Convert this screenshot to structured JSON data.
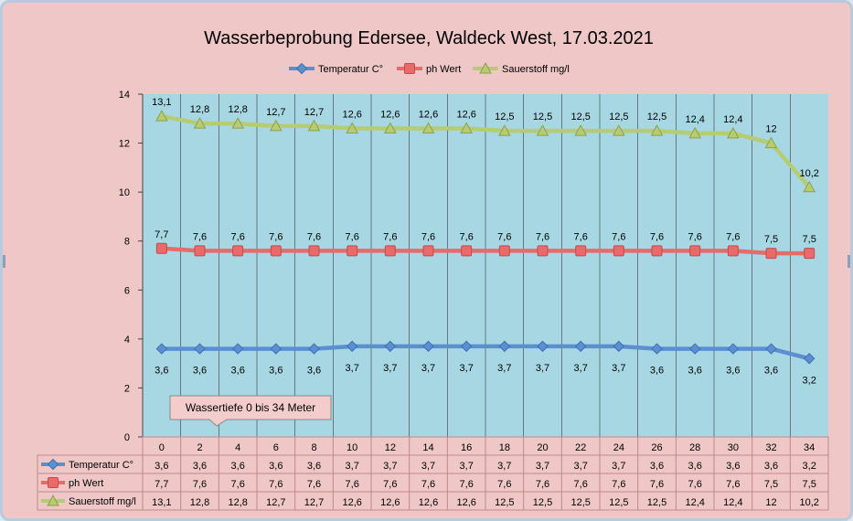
{
  "chart_data": {
    "type": "line",
    "title": "Wasserbeprobung Edersee, Waldeck West, 17.03.2021",
    "categories": [
      "0",
      "2",
      "4",
      "6",
      "8",
      "10",
      "12",
      "14",
      "16",
      "18",
      "20",
      "22",
      "24",
      "26",
      "28",
      "30",
      "32",
      "34"
    ],
    "ylim": [
      0,
      14
    ],
    "yticks": [
      "0",
      "2",
      "4",
      "6",
      "8",
      "10",
      "12",
      "14"
    ],
    "grid": "vertical",
    "legend": "top",
    "series": [
      {
        "name": "Temperatur C°",
        "color": "#5b8fd2",
        "marker": "diamond",
        "values": [
          3.6,
          3.6,
          3.6,
          3.6,
          3.6,
          3.7,
          3.7,
          3.7,
          3.7,
          3.7,
          3.7,
          3.7,
          3.7,
          3.6,
          3.6,
          3.6,
          3.6,
          3.2
        ],
        "labels": [
          "3,6",
          "3,6",
          "3,6",
          "3,6",
          "3,6",
          "3,7",
          "3,7",
          "3,7",
          "3,7",
          "3,7",
          "3,7",
          "3,7",
          "3,7",
          "3,6",
          "3,6",
          "3,6",
          "3,6",
          "3,2"
        ]
      },
      {
        "name": "ph Wert",
        "color": "#e86a6a",
        "marker": "square",
        "values": [
          7.7,
          7.6,
          7.6,
          7.6,
          7.6,
          7.6,
          7.6,
          7.6,
          7.6,
          7.6,
          7.6,
          7.6,
          7.6,
          7.6,
          7.6,
          7.6,
          7.5,
          7.5
        ],
        "labels": [
          "7,7",
          "7,6",
          "7,6",
          "7,6",
          "7,6",
          "7,6",
          "7,6",
          "7,6",
          "7,6",
          "7,6",
          "7,6",
          "7,6",
          "7,6",
          "7,6",
          "7,6",
          "7,6",
          "7,5",
          "7,5"
        ]
      },
      {
        "name": "Sauerstoff mg/l",
        "color": "#b5cc72",
        "marker": "triangle",
        "values": [
          13.1,
          12.8,
          12.8,
          12.7,
          12.7,
          12.6,
          12.6,
          12.6,
          12.6,
          12.5,
          12.5,
          12.5,
          12.5,
          12.5,
          12.4,
          12.4,
          12,
          10.2
        ],
        "labels": [
          "13,1",
          "12,8",
          "12,8",
          "12,7",
          "12,7",
          "12,6",
          "12,6",
          "12,6",
          "12,6",
          "12,5",
          "12,5",
          "12,5",
          "12,5",
          "12,5",
          "12,4",
          "12,4",
          "12",
          "10,2"
        ]
      }
    ],
    "annotation": "Wassertiefe 0 bis 34 Meter",
    "colors": {
      "chart_area": "#efc7c7",
      "plot_area": "#a7d7e2",
      "grid": "#3a3a3a",
      "table_border": "#c28888"
    }
  }
}
